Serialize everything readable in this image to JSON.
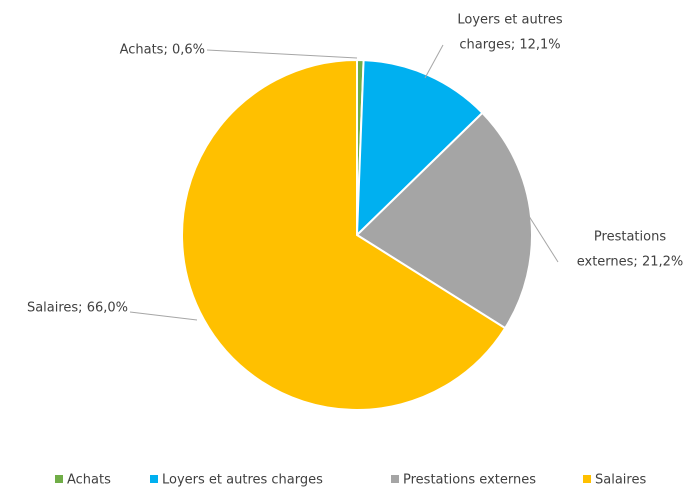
{
  "chart_data": {
    "type": "pie",
    "categories": [
      "Achats",
      "Loyers et autres charges",
      "Prestations externes",
      "Salaires"
    ],
    "values": [
      0.6,
      12.1,
      21.2,
      66.0
    ],
    "value_labels": [
      [
        "Achats; 0,6%"
      ],
      [
        "Loyers et autres",
        "charges; 12,1%"
      ],
      [
        "Prestations",
        "externes; 21,2%"
      ],
      [
        "Salaires; 66,0%"
      ]
    ],
    "colors": [
      "#70ad47",
      "#00b0f0",
      "#a5a5a5",
      "#ffc000"
    ],
    "legend": "bottom"
  }
}
